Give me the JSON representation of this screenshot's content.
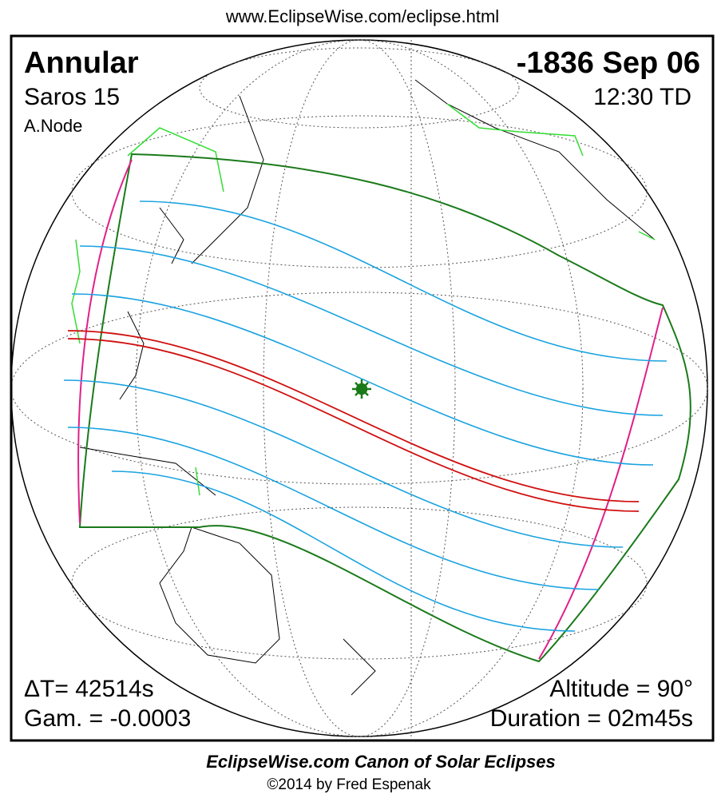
{
  "header": {
    "url": "www.EclipseWise.com/eclipse.html"
  },
  "eclipse": {
    "type": "Annular",
    "saros": "Saros  15",
    "node": "A.Node",
    "date": "-1836 Sep 06",
    "time": "12:30 TD",
    "delta_t": "ΔT=  42514s",
    "gamma": "Gam. = -0.0003",
    "altitude": "Altitude = 90°",
    "duration": "Duration = 02m45s"
  },
  "footer": {
    "title": "EclipseWise.com Canon of Solar Eclipses",
    "copyright": "©2014 by Fred Espenak"
  }
}
